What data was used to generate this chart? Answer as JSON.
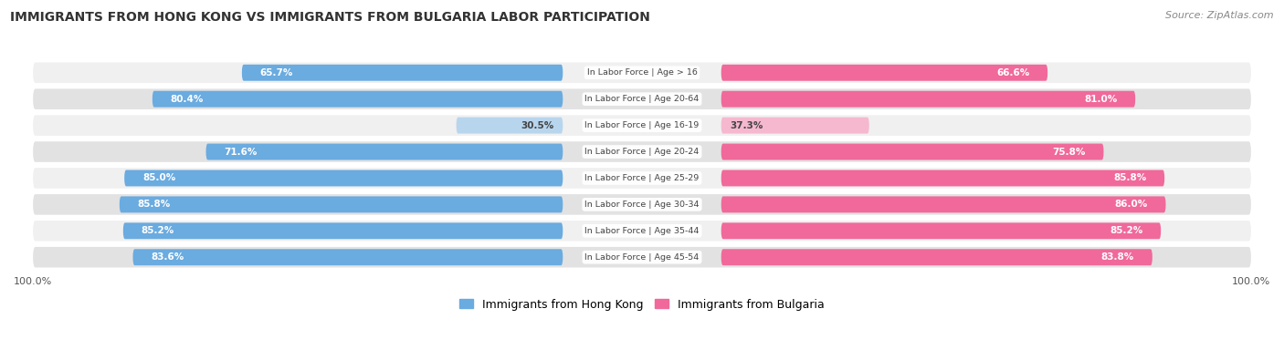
{
  "title": "IMMIGRANTS FROM HONG KONG VS IMMIGRANTS FROM BULGARIA LABOR PARTICIPATION",
  "source": "Source: ZipAtlas.com",
  "categories": [
    "In Labor Force | Age > 16",
    "In Labor Force | Age 20-64",
    "In Labor Force | Age 16-19",
    "In Labor Force | Age 20-24",
    "In Labor Force | Age 25-29",
    "In Labor Force | Age 30-34",
    "In Labor Force | Age 35-44",
    "In Labor Force | Age 45-54"
  ],
  "hong_kong_values": [
    65.7,
    80.4,
    30.5,
    71.6,
    85.0,
    85.8,
    85.2,
    83.6
  ],
  "bulgaria_values": [
    66.6,
    81.0,
    37.3,
    75.8,
    85.8,
    86.0,
    85.2,
    83.8
  ],
  "hong_kong_color": "#6aabe0",
  "hong_kong_color_light": "#b8d5ee",
  "bulgaria_color": "#f0699a",
  "bulgaria_color_light": "#f5b8cf",
  "row_bg_color_odd": "#f0f0f0",
  "row_bg_color_even": "#e2e2e2",
  "figsize": [
    14.06,
    3.95
  ],
  "dpi": 100
}
